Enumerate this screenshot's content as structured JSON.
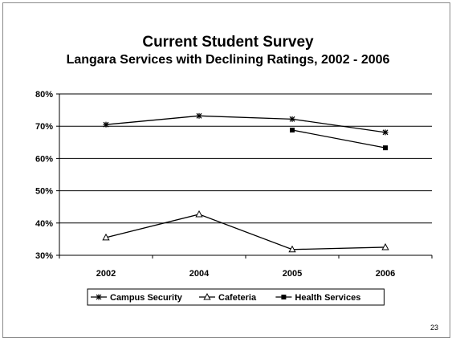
{
  "chart_data": {
    "type": "line",
    "title": "Current Student Survey",
    "subtitle": "Langara Services with Declining Ratings, 2002 - 2006",
    "categories": [
      "2002",
      "2004",
      "2005",
      "2006"
    ],
    "ylim": [
      0.3,
      0.8
    ],
    "yticks": [
      0.3,
      0.4,
      0.5,
      0.6,
      0.7,
      0.8
    ],
    "ytick_labels": [
      "30%",
      "40%",
      "50%",
      "60%",
      "70%",
      "80%"
    ],
    "grid": true,
    "legend_position": "bottom",
    "series": [
      {
        "name": "Campus Security",
        "marker": "star",
        "values": [
          0.705,
          0.732,
          0.722,
          0.681
        ]
      },
      {
        "name": "Cafeteria",
        "marker": "triangle-open",
        "values": [
          0.355,
          0.427,
          0.318,
          0.325
        ]
      },
      {
        "name": "Health Services",
        "marker": "square",
        "values": [
          null,
          null,
          0.688,
          0.633
        ]
      }
    ],
    "colors": {
      "line": "#000000",
      "grid": "#000000",
      "border": "#8a8a8a"
    }
  },
  "page": {
    "number": "23"
  }
}
